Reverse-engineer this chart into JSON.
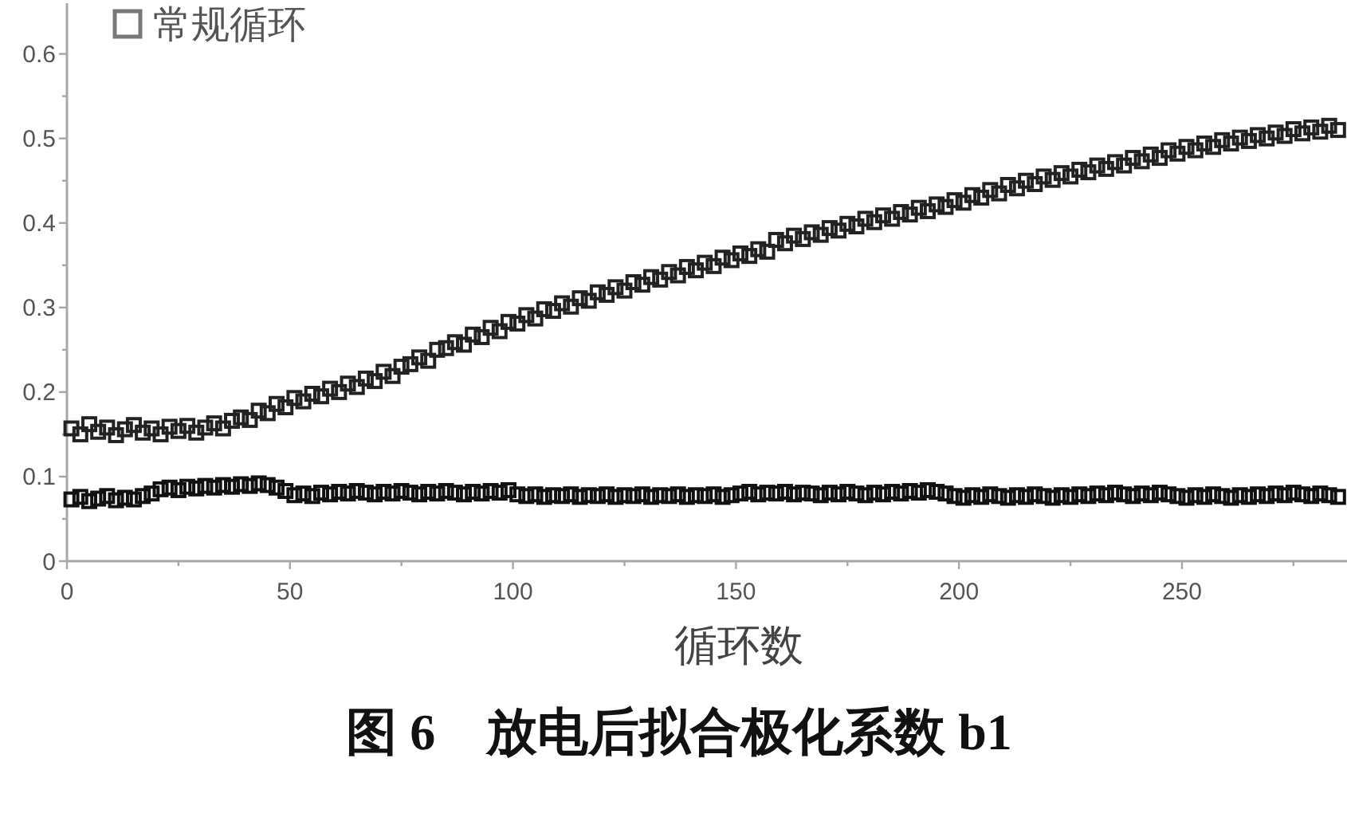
{
  "chart_data": {
    "type": "scatter",
    "title": "图 6　放电后拟合极化系数 b1",
    "xlabel": "循环数",
    "marker": "square",
    "legend": "top left",
    "xlim": [
      0,
      287
    ],
    "ylim": [
      0,
      0.66
    ],
    "xticks": [
      0,
      {
        "value": 25,
        "label": null
      },
      50,
      {
        "value": 75,
        "label": null
      },
      100,
      {
        "value": 125,
        "label": null
      },
      150,
      {
        "value": 175,
        "label": null
      },
      200,
      {
        "value": 225,
        "label": null
      },
      250,
      {
        "value": 275,
        "label": null
      }
    ],
    "yticks": [
      0,
      {
        "value": 0.05,
        "label": null
      },
      0.1,
      {
        "value": 0.15,
        "label": null
      },
      0.2,
      {
        "value": 0.25,
        "label": null
      },
      0.3,
      {
        "value": 0.35,
        "label": null
      },
      0.4,
      {
        "value": 0.45,
        "label": null
      },
      0.5,
      {
        "value": 0.55,
        "label": null
      },
      0.6
    ],
    "x": [
      1,
      3,
      5,
      7,
      9,
      11,
      13,
      15,
      17,
      19,
      21,
      23,
      25,
      27,
      29,
      31,
      33,
      35,
      37,
      39,
      41,
      43,
      45,
      47,
      49,
      51,
      53,
      55,
      57,
      59,
      61,
      63,
      65,
      67,
      69,
      71,
      73,
      75,
      77,
      79,
      81,
      83,
      85,
      87,
      89,
      91,
      93,
      95,
      97,
      99,
      101,
      103,
      105,
      107,
      109,
      111,
      113,
      115,
      117,
      119,
      121,
      123,
      125,
      127,
      129,
      131,
      133,
      135,
      137,
      139,
      141,
      143,
      145,
      147,
      149,
      151,
      153,
      155,
      157,
      159,
      161,
      163,
      165,
      167,
      169,
      171,
      173,
      175,
      177,
      179,
      181,
      183,
      185,
      187,
      189,
      191,
      193,
      195,
      197,
      199,
      201,
      203,
      205,
      207,
      209,
      211,
      213,
      215,
      217,
      219,
      221,
      223,
      225,
      227,
      229,
      231,
      233,
      235,
      237,
      239,
      241,
      243,
      245,
      247,
      249,
      251,
      253,
      255,
      257,
      259,
      261,
      263,
      265,
      267,
      269,
      271,
      273,
      275,
      277,
      279,
      281,
      283,
      285
    ],
    "series": [
      {
        "name": "常规循环",
        "color": "#222222",
        "values": [
          0.157,
          0.15,
          0.162,
          0.153,
          0.158,
          0.149,
          0.156,
          0.161,
          0.152,
          0.157,
          0.15,
          0.159,
          0.154,
          0.16,
          0.152,
          0.158,
          0.163,
          0.157,
          0.166,
          0.17,
          0.167,
          0.178,
          0.175,
          0.186,
          0.182,
          0.193,
          0.189,
          0.198,
          0.195,
          0.204,
          0.2,
          0.21,
          0.206,
          0.216,
          0.213,
          0.224,
          0.219,
          0.23,
          0.233,
          0.241,
          0.237,
          0.25,
          0.252,
          0.259,
          0.256,
          0.268,
          0.265,
          0.276,
          0.272,
          0.283,
          0.281,
          0.291,
          0.287,
          0.298,
          0.296,
          0.305,
          0.301,
          0.311,
          0.308,
          0.318,
          0.315,
          0.324,
          0.32,
          0.33,
          0.327,
          0.336,
          0.333,
          0.342,
          0.338,
          0.348,
          0.344,
          0.353,
          0.349,
          0.359,
          0.356,
          0.364,
          0.361,
          0.369,
          0.366,
          0.38,
          0.376,
          0.385,
          0.381,
          0.389,
          0.386,
          0.394,
          0.391,
          0.399,
          0.396,
          0.405,
          0.401,
          0.409,
          0.405,
          0.413,
          0.41,
          0.418,
          0.414,
          0.422,
          0.419,
          0.427,
          0.424,
          0.433,
          0.43,
          0.439,
          0.435,
          0.445,
          0.441,
          0.45,
          0.446,
          0.455,
          0.451,
          0.459,
          0.455,
          0.463,
          0.46,
          0.468,
          0.464,
          0.472,
          0.468,
          0.477,
          0.473,
          0.481,
          0.477,
          0.486,
          0.482,
          0.49,
          0.486,
          0.494,
          0.49,
          0.498,
          0.494,
          0.501,
          0.497,
          0.504,
          0.5,
          0.507,
          0.503,
          0.511,
          0.506,
          0.513,
          0.508,
          0.515,
          0.51
        ]
      },
      {
        "color": "#111111",
        "values": [
          0.073,
          0.076,
          0.071,
          0.074,
          0.077,
          0.072,
          0.075,
          0.073,
          0.077,
          0.08,
          0.085,
          0.087,
          0.084,
          0.088,
          0.086,
          0.089,
          0.087,
          0.09,
          0.088,
          0.091,
          0.089,
          0.092,
          0.09,
          0.087,
          0.083,
          0.078,
          0.08,
          0.077,
          0.081,
          0.079,
          0.082,
          0.08,
          0.083,
          0.081,
          0.079,
          0.082,
          0.08,
          0.083,
          0.081,
          0.079,
          0.082,
          0.08,
          0.083,
          0.081,
          0.079,
          0.082,
          0.08,
          0.083,
          0.081,
          0.084,
          0.079,
          0.077,
          0.079,
          0.076,
          0.078,
          0.077,
          0.079,
          0.076,
          0.078,
          0.077,
          0.079,
          0.076,
          0.078,
          0.077,
          0.079,
          0.076,
          0.078,
          0.077,
          0.079,
          0.076,
          0.078,
          0.077,
          0.079,
          0.076,
          0.078,
          0.08,
          0.082,
          0.079,
          0.081,
          0.08,
          0.082,
          0.079,
          0.081,
          0.08,
          0.078,
          0.081,
          0.079,
          0.082,
          0.08,
          0.078,
          0.081,
          0.079,
          0.082,
          0.08,
          0.083,
          0.081,
          0.084,
          0.082,
          0.08,
          0.077,
          0.075,
          0.078,
          0.076,
          0.079,
          0.077,
          0.075,
          0.078,
          0.076,
          0.079,
          0.077,
          0.075,
          0.078,
          0.076,
          0.079,
          0.077,
          0.08,
          0.078,
          0.081,
          0.079,
          0.077,
          0.08,
          0.078,
          0.081,
          0.079,
          0.077,
          0.075,
          0.078,
          0.076,
          0.079,
          0.077,
          0.075,
          0.078,
          0.076,
          0.079,
          0.077,
          0.08,
          0.078,
          0.081,
          0.079,
          0.077,
          0.08,
          0.078,
          0.076
        ]
      }
    ]
  }
}
